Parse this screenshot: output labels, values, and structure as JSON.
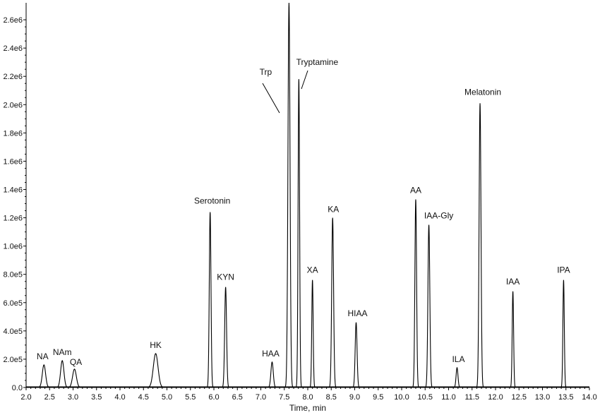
{
  "chart_data": {
    "type": "line",
    "xlabel": "Time, min",
    "ylabel": "",
    "xlim": [
      2.0,
      14.0
    ],
    "ylim": [
      0,
      2720000.0
    ],
    "x_ticks": [
      "2.0",
      "2.5",
      "3.0",
      "3.5",
      "4.0",
      "4.5",
      "5.0",
      "5.5",
      "6.0",
      "6.5",
      "7.0",
      "7.5",
      "8.0",
      "8.5",
      "9.0",
      "9.5",
      "10.0",
      "10.5",
      "11.0",
      "11.5",
      "12.0",
      "12.5",
      "13.0",
      "13.5",
      "14.0"
    ],
    "y_ticks": [
      "0.0",
      "2.0e5",
      "4.0e5",
      "6.0e5",
      "8.0e5",
      "1.0e6",
      "1.2e6",
      "1.4e6",
      "1.6e6",
      "1.8e6",
      "2.0e6",
      "2.2e6",
      "2.4e6",
      "2.6e6"
    ],
    "y_tick_values": [
      0,
      200000,
      400000,
      600000,
      800000,
      1000000,
      1200000,
      1400000,
      1600000,
      1800000,
      2000000,
      2200000,
      2400000,
      2600000
    ],
    "grid": false,
    "peaks": [
      {
        "label": "NA",
        "x": 2.38,
        "y": 160000,
        "w": 0.035
      },
      {
        "label": "NAm",
        "x": 2.77,
        "y": 190000,
        "w": 0.035
      },
      {
        "label": "QA",
        "x": 3.03,
        "y": 130000,
        "w": 0.04
      },
      {
        "label": "HK",
        "x": 4.76,
        "y": 240000,
        "w": 0.05
      },
      {
        "label": "Serotonin",
        "x": 5.92,
        "y": 1240000,
        "w": 0.018
      },
      {
        "label": "KYN",
        "x": 6.25,
        "y": 710000,
        "w": 0.02
      },
      {
        "label": "HAA",
        "x": 7.24,
        "y": 180000,
        "w": 0.025
      },
      {
        "label": "Trp",
        "x": 7.6,
        "y": 2720000,
        "w": 0.022
      },
      {
        "label": "Tryptamine",
        "x": 7.81,
        "y": 2180000,
        "w": 0.016
      },
      {
        "label": "XA",
        "x": 8.1,
        "y": 760000,
        "w": 0.015
      },
      {
        "label": "KA",
        "x": 8.53,
        "y": 1200000,
        "w": 0.02
      },
      {
        "label": "HIAA",
        "x": 9.03,
        "y": 460000,
        "w": 0.02
      },
      {
        "label": "AA",
        "x": 10.3,
        "y": 1330000,
        "w": 0.018
      },
      {
        "label": "IAA-Gly",
        "x": 10.58,
        "y": 1150000,
        "w": 0.02
      },
      {
        "label": "ILA",
        "x": 11.18,
        "y": 140000,
        "w": 0.02
      },
      {
        "label": "Melatonin",
        "x": 11.67,
        "y": 2010000,
        "w": 0.02
      },
      {
        "label": "IAA",
        "x": 12.37,
        "y": 680000,
        "w": 0.015
      },
      {
        "label": "IPA",
        "x": 13.45,
        "y": 760000,
        "w": 0.015
      }
    ]
  }
}
